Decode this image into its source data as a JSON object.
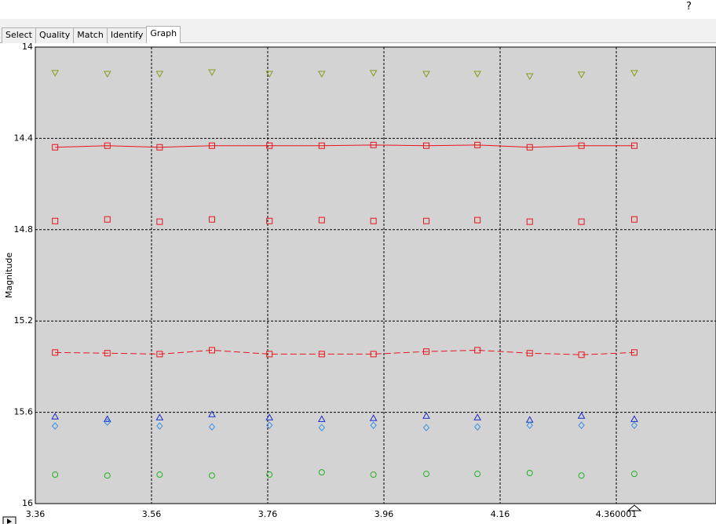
{
  "help": "?",
  "tabs": [
    "Select",
    "Quality",
    "Match",
    "Identify",
    "Graph"
  ],
  "active_tab": 4,
  "chart_data": {
    "type": "scatter",
    "y_label": "Magnitude",
    "xlim": [
      3.36,
      4.5316
    ],
    "ylim": [
      16,
      14
    ],
    "xticks": [
      3.36,
      3.56,
      3.76,
      3.96,
      4.16,
      {
        "value": 4.36,
        "label": "4.360001"
      }
    ],
    "yticks": [
      14,
      14.4,
      14.8,
      15.2,
      15.6,
      16
    ],
    "grid": true,
    "x": [
      3.394,
      3.484,
      3.574,
      3.664,
      3.763,
      3.853,
      3.942,
      4.033,
      4.121,
      4.211,
      4.3,
      4.391
    ],
    "series": [
      {
        "color": "#8a9a1a",
        "marker": "triangle-down",
        "line": "none",
        "values": [
          14.113,
          14.117,
          14.117,
          14.11,
          14.117,
          14.117,
          14.113,
          14.117,
          14.117,
          14.127,
          14.12,
          14.113
        ]
      },
      {
        "color": "#e8141e",
        "marker": "square",
        "line": "solid",
        "values": [
          14.439,
          14.432,
          14.439,
          14.432,
          14.432,
          14.432,
          14.429,
          14.432,
          14.429,
          14.439,
          14.432,
          14.432
        ]
      },
      {
        "color": "#e8141e",
        "marker": "square",
        "line": "none",
        "values": [
          14.762,
          14.755,
          14.765,
          14.755,
          14.762,
          14.758,
          14.762,
          14.762,
          14.758,
          14.765,
          14.765,
          14.755
        ]
      },
      {
        "color": "#e8141e",
        "marker": "square",
        "line": "dashed",
        "values": [
          15.338,
          15.341,
          15.345,
          15.328,
          15.345,
          15.345,
          15.345,
          15.334,
          15.328,
          15.341,
          15.348,
          15.338
        ]
      },
      {
        "color": "#1a2ccc",
        "marker": "triangle-up",
        "line": "none",
        "values": [
          15.619,
          15.63,
          15.623,
          15.609,
          15.623,
          15.63,
          15.626,
          15.616,
          15.623,
          15.633,
          15.616,
          15.63
        ]
      },
      {
        "color": "#3a8ee6",
        "marker": "diamond",
        "line": "none",
        "values": [
          15.66,
          15.643,
          15.66,
          15.664,
          15.657,
          15.667,
          15.657,
          15.667,
          15.664,
          15.657,
          15.657,
          15.657
        ]
      },
      {
        "color": "#22b022",
        "marker": "circle",
        "line": "none",
        "values": [
          15.873,
          15.877,
          15.873,
          15.877,
          15.873,
          15.863,
          15.873,
          15.87,
          15.87,
          15.866,
          15.877,
          15.87
        ]
      }
    ]
  }
}
